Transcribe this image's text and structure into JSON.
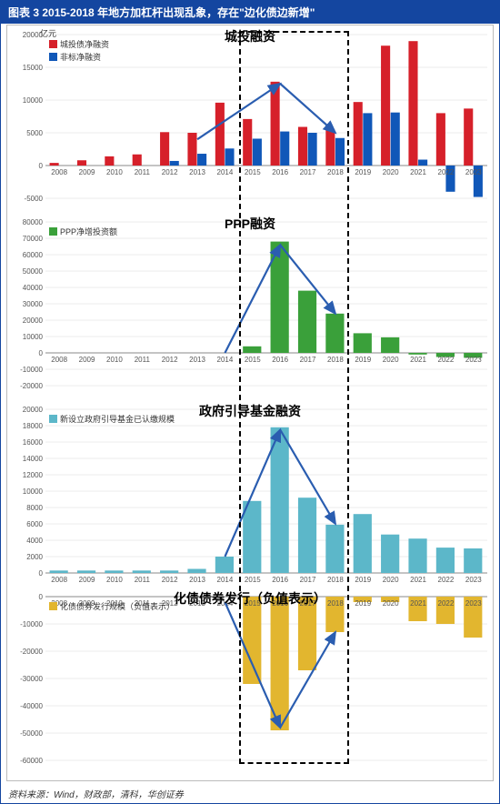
{
  "title": "图表 3  2015-2018 年地方加杠杆出现乱象，存在\"边化债边新增\"",
  "footnote": "资料来源：Wind，财政部，清科，华创证券",
  "years": [
    "2008",
    "2009",
    "2010",
    "2011",
    "2012",
    "2013",
    "2014",
    "2015",
    "2016",
    "2017",
    "2018",
    "2019",
    "2020",
    "2021",
    "2022",
    "2023"
  ],
  "layout": {
    "outer_w": 550,
    "outer_h": 884,
    "charts_x": 6,
    "charts_y": 26,
    "charts_w": 536,
    "charts_h": 834,
    "panel_h": [
      206,
      206,
      206,
      206
    ],
    "plot": {
      "l": 42,
      "r": 8,
      "t": 10,
      "b": 16
    },
    "highlight_years": [
      "2015",
      "2016",
      "2017",
      "2018"
    ]
  },
  "colors": {
    "red": "#d6202a",
    "blue": "#1057b8",
    "green": "#3aa03a",
    "teal": "#5cb7c9",
    "gold": "#e2b62f",
    "grid": "#d8d8d8",
    "axis": "#888",
    "tick_text": "#555",
    "arrow": "#2a5db0"
  },
  "panels": [
    {
      "id": "urban-inv",
      "section_label": "城投融资",
      "unit": "亿元",
      "ylim": [
        -5000,
        20000
      ],
      "ytick_step": 5000,
      "legend": [
        {
          "label": "城投债净融资",
          "color": "#d6202a"
        },
        {
          "label": "非标净融资",
          "color": "#1057b8"
        }
      ],
      "series": [
        {
          "name": "城投债净融资",
          "color": "#d6202a",
          "values": [
            400,
            800,
            1400,
            1700,
            5100,
            5000,
            9600,
            7100,
            12800,
            5900,
            5500,
            9700,
            18300,
            19000,
            8000,
            8700
          ]
        },
        {
          "name": "非标净融资",
          "color": "#1057b8",
          "values": [
            0,
            0,
            0,
            0,
            700,
            1800,
            2600,
            4100,
            5200,
            5000,
            4200,
            8000,
            8100,
            900,
            -4000,
            -4800
          ]
        }
      ],
      "arrows": [
        {
          "from_year": "2013",
          "from_y": 4000,
          "to_year": "2016",
          "to_y": 12500
        },
        {
          "from_year": "2016",
          "from_y": 12500,
          "to_year": "2018",
          "to_y": 5000
        }
      ]
    },
    {
      "id": "ppp",
      "section_label": "PPP融资",
      "unit": "",
      "ylim": [
        -20000,
        80000
      ],
      "ytick_step": 10000,
      "legend": [
        {
          "label": "PPP净增投资额",
          "color": "#3aa03a"
        }
      ],
      "series": [
        {
          "name": "PPP净增投资额",
          "color": "#3aa03a",
          "values": [
            0,
            0,
            0,
            0,
            0,
            0,
            0,
            4000,
            68000,
            38000,
            24000,
            12000,
            9500,
            -1000,
            -2500,
            -3000
          ]
        }
      ],
      "arrows": [
        {
          "from_year": "2014",
          "from_y": 0,
          "to_year": "2016",
          "to_y": 66000
        },
        {
          "from_year": "2016",
          "from_y": 66000,
          "to_year": "2018",
          "to_y": 24000
        }
      ]
    },
    {
      "id": "gov-fund",
      "section_label": "政府引导基金融资",
      "unit": "",
      "ylim": [
        0,
        20000
      ],
      "ytick_step": 2000,
      "legend": [
        {
          "label": "新设立政府引导基金已认缴规模",
          "color": "#5cb7c9"
        }
      ],
      "series": [
        {
          "name": "新设立政府引导基金已认缴规模",
          "color": "#5cb7c9",
          "values": [
            300,
            300,
            300,
            300,
            300,
            500,
            2000,
            8800,
            17800,
            9200,
            5900,
            7200,
            4700,
            4200,
            3100,
            3000
          ]
        }
      ],
      "arrows": [
        {
          "from_year": "2014",
          "from_y": 2000,
          "to_year": "2016",
          "to_y": 17500
        },
        {
          "from_year": "2016",
          "from_y": 17500,
          "to_year": "2018",
          "to_y": 6000
        }
      ]
    },
    {
      "id": "debt-issue",
      "section_label": "化债债券发行（负值表示）",
      "section_label_pos": "bottom",
      "unit": "",
      "ylim": [
        -60000,
        0
      ],
      "ytick_step": 10000,
      "legend": [
        {
          "label": "化债债券发行规模（负值表示）",
          "color": "#e2b62f"
        }
      ],
      "series": [
        {
          "name": "化债债券发行规模",
          "color": "#e2b62f",
          "values": [
            0,
            0,
            0,
            0,
            0,
            0,
            0,
            -32000,
            -49000,
            -27000,
            -13000,
            -2000,
            -2000,
            -9000,
            -10000,
            -15000
          ]
        }
      ],
      "arrows": [
        {
          "from_year": "2014",
          "from_y": -2000,
          "to_year": "2016",
          "to_y": -48000
        },
        {
          "from_year": "2016",
          "from_y": -48000,
          "to_year": "2018",
          "to_y": -13000
        }
      ]
    }
  ]
}
